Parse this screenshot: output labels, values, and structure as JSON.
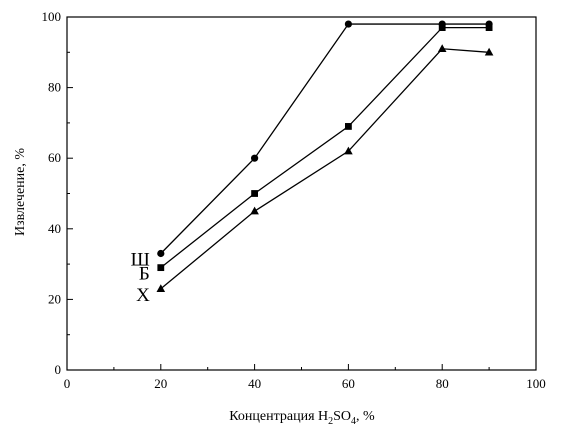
{
  "chart_data": {
    "type": "line",
    "title": "",
    "xlabel": "Концентрация H2SO4, %",
    "xlabel_parts": {
      "before": "Концентрация H",
      "sub1": "2",
      "middle": "SO",
      "sub2": "4",
      "after": ", %"
    },
    "ylabel": "Извлечение, %",
    "xlim": [
      0,
      100
    ],
    "ylim": [
      0,
      100
    ],
    "xticks": [
      0,
      20,
      40,
      60,
      80,
      100
    ],
    "yticks": [
      0,
      20,
      40,
      60,
      80,
      100
    ],
    "grid": false,
    "series": [
      {
        "name": "Ш",
        "marker": "circle",
        "x": [
          20,
          40,
          60,
          80,
          90
        ],
        "y": [
          33,
          60,
          98,
          98,
          98
        ]
      },
      {
        "name": "Б",
        "marker": "square",
        "x": [
          20,
          40,
          60,
          80,
          90
        ],
        "y": [
          29,
          50,
          69,
          97,
          97
        ]
      },
      {
        "name": "Х",
        "marker": "triangle",
        "x": [
          20,
          40,
          60,
          80,
          90
        ],
        "y": [
          23,
          45,
          62,
          91,
          90
        ]
      }
    ]
  }
}
